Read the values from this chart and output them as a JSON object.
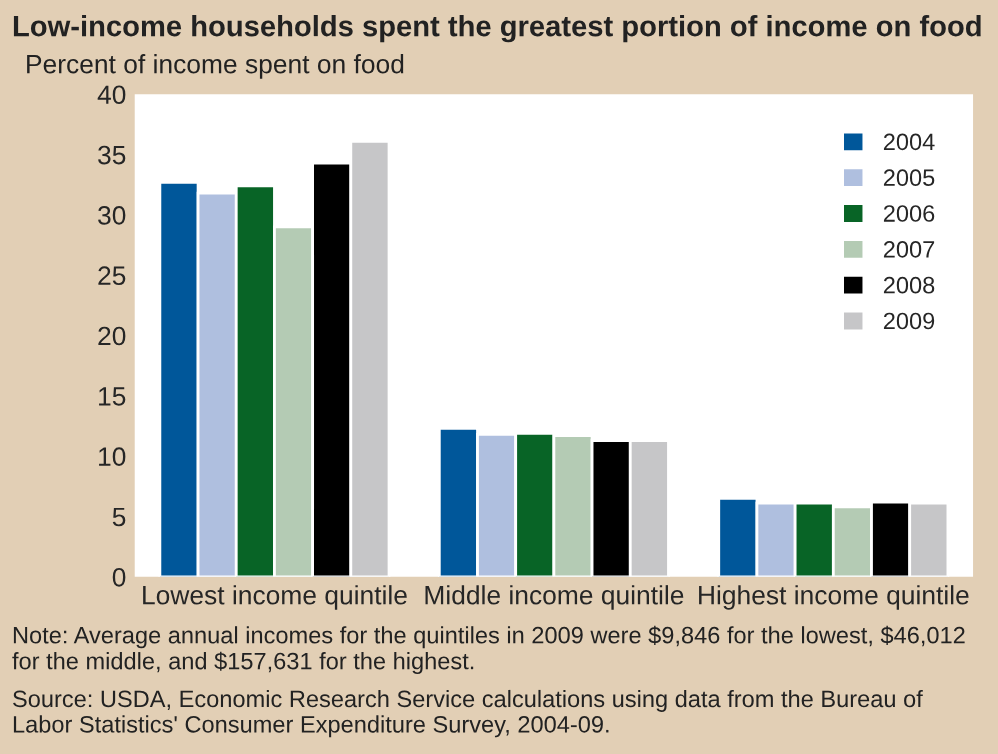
{
  "chart_data": {
    "type": "bar",
    "title": "Low-income households spent the greatest portion of income on food",
    "ylabel": "Percent of income spent on food",
    "categories": [
      "Lowest income quintile",
      "Middle income quintile",
      "Highest income quintile"
    ],
    "series": [
      {
        "name": "2004",
        "color": "#00579a",
        "values": [
          32.7,
          12.3,
          6.5
        ]
      },
      {
        "name": "2005",
        "color": "#afbfdf",
        "values": [
          31.8,
          11.8,
          6.1
        ]
      },
      {
        "name": "2006",
        "color": "#086426",
        "values": [
          32.4,
          11.9,
          6.1
        ]
      },
      {
        "name": "2007",
        "color": "#b4cbb4",
        "values": [
          29.0,
          11.7,
          5.8
        ]
      },
      {
        "name": "2008",
        "color": "#000000",
        "values": [
          34.3,
          11.3,
          6.2
        ]
      },
      {
        "name": "2009",
        "color": "#c6c6c8",
        "values": [
          36.1,
          11.3,
          6.1
        ]
      }
    ],
    "ylim": [
      0,
      40
    ],
    "yticks": [
      0,
      5,
      10,
      15,
      20,
      25,
      30,
      35,
      40
    ],
    "grid": false,
    "legend": "top right",
    "annotations": [
      "Note: Average annual incomes for the quintiles in 2009 were $9,846 for the lowest, $46,012 for the middle, and $157,631 for the highest.",
      "Source: USDA, Economic Research Service calculations using data from the Bureau of Labor Statistics' Consumer Expenditure Survey, 2004-09."
    ]
  }
}
